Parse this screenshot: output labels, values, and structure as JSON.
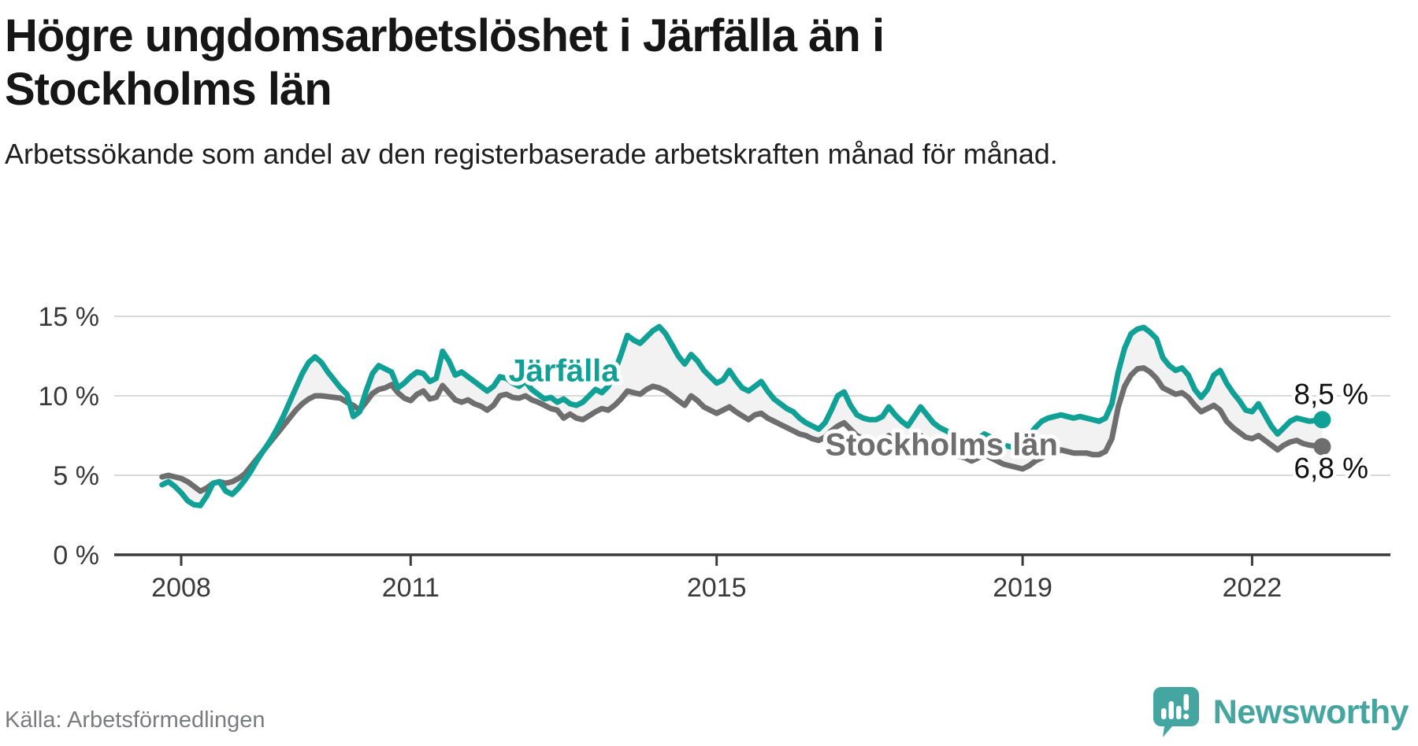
{
  "header": {
    "title": "Högre ungdomsarbetslöshet i Järfälla än i Stockholms län",
    "subtitle": "Arbetssökande som andel av den registerbaserade arbetskraften månad för månad."
  },
  "chart_data": {
    "type": "line",
    "grid": "horizontal-only",
    "x_axis": {
      "ticks": [
        2008,
        2011,
        2015,
        2019,
        2022
      ],
      "labels": [
        "2008",
        "2011",
        "2015",
        "2019",
        "2022"
      ]
    },
    "y_axis": {
      "ticks": [
        0,
        5,
        10,
        15
      ],
      "labels": [
        "0 %",
        "5 %",
        "10 %",
        "15 %"
      ],
      "range": [
        0,
        15.5
      ]
    },
    "start": {
      "year": 2007,
      "month": 10
    },
    "frequency": "monthly",
    "band_fill": "#f2f2f2",
    "series": [
      {
        "name": "Järfälla",
        "color": "#10a096",
        "end_label": "8,5 %",
        "end_label_dy": -20,
        "label_pos": {
          "x": 2013.0,
          "y": 11.6
        },
        "values": [
          4.4,
          4.6,
          4.3,
          3.9,
          3.4,
          3.15,
          3.1,
          3.7,
          4.5,
          4.6,
          4.0,
          3.8,
          4.2,
          4.7,
          5.3,
          6.0,
          6.6,
          7.2,
          7.9,
          8.7,
          9.6,
          10.5,
          11.4,
          12.1,
          12.45,
          12.1,
          11.5,
          11.0,
          10.5,
          10.1,
          8.7,
          9.0,
          10.3,
          11.4,
          11.9,
          11.7,
          11.5,
          10.5,
          10.8,
          11.2,
          11.5,
          11.4,
          10.9,
          11.1,
          12.8,
          12.2,
          11.3,
          11.5,
          11.2,
          10.9,
          10.6,
          10.3,
          10.6,
          11.2,
          11.1,
          10.8,
          10.6,
          10.9,
          10.4,
          10.1,
          9.8,
          9.9,
          9.6,
          9.8,
          9.5,
          9.4,
          9.6,
          10.0,
          10.4,
          10.2,
          10.6,
          11.5,
          12.6,
          13.8,
          13.5,
          13.3,
          13.7,
          14.1,
          14.35,
          13.9,
          13.2,
          12.5,
          12.0,
          12.6,
          12.2,
          11.6,
          11.2,
          10.8,
          11.0,
          11.6,
          11.0,
          10.5,
          10.3,
          10.6,
          10.9,
          10.3,
          9.8,
          9.5,
          9.2,
          9.0,
          8.6,
          8.3,
          8.1,
          7.9,
          8.3,
          9.1,
          10.0,
          10.25,
          9.4,
          8.8,
          8.6,
          8.5,
          8.5,
          8.7,
          9.3,
          8.8,
          8.4,
          8.1,
          8.7,
          9.3,
          8.8,
          8.3,
          8.0,
          7.8,
          7.6,
          7.4,
          7.2,
          7.0,
          7.3,
          7.6,
          7.4,
          7.1,
          6.9,
          6.8,
          6.7,
          7.0,
          7.5,
          8.0,
          8.4,
          8.6,
          8.7,
          8.8,
          8.7,
          8.6,
          8.7,
          8.6,
          8.5,
          8.4,
          8.6,
          9.5,
          11.5,
          13.0,
          13.9,
          14.2,
          14.3,
          14.0,
          13.6,
          12.4,
          11.9,
          11.6,
          11.75,
          11.3,
          10.4,
          9.9,
          10.4,
          11.3,
          11.6,
          10.8,
          10.2,
          9.7,
          9.1,
          9.0,
          9.5,
          8.8,
          8.1,
          7.6,
          8.0,
          8.4,
          8.6,
          8.5,
          8.4,
          8.45,
          8.5
        ]
      },
      {
        "name": "Stockholms län",
        "color": "#6e6e6e",
        "end_label": "6,8 %",
        "end_label_dy": 40,
        "label_pos": {
          "x": 2017.94,
          "y": 6.95
        },
        "values": [
          4.9,
          5.0,
          4.9,
          4.8,
          4.6,
          4.3,
          4.0,
          4.2,
          4.5,
          4.6,
          4.5,
          4.6,
          4.8,
          5.1,
          5.6,
          6.1,
          6.6,
          7.1,
          7.6,
          8.1,
          8.6,
          9.1,
          9.5,
          9.8,
          10.0,
          10.0,
          9.95,
          9.9,
          9.85,
          9.6,
          9.4,
          9.1,
          9.6,
          10.15,
          10.4,
          10.5,
          10.7,
          10.2,
          9.85,
          9.7,
          10.1,
          10.3,
          9.8,
          9.9,
          10.65,
          10.2,
          9.75,
          9.6,
          9.75,
          9.5,
          9.35,
          9.1,
          9.4,
          10.0,
          10.1,
          9.9,
          9.85,
          10.0,
          9.75,
          9.6,
          9.4,
          9.2,
          9.1,
          8.6,
          8.85,
          8.6,
          8.5,
          8.75,
          9.0,
          9.2,
          9.1,
          9.4,
          9.8,
          10.3,
          10.2,
          10.1,
          10.4,
          10.6,
          10.5,
          10.3,
          10.0,
          9.7,
          9.4,
          10.0,
          9.7,
          9.3,
          9.1,
          8.9,
          9.1,
          9.3,
          9.0,
          8.75,
          8.5,
          8.8,
          8.9,
          8.6,
          8.4,
          8.2,
          8.0,
          7.8,
          7.6,
          7.5,
          7.3,
          7.2,
          7.4,
          7.8,
          8.1,
          8.3,
          7.9,
          7.5,
          7.3,
          7.2,
          7.1,
          7.2,
          7.5,
          7.2,
          7.0,
          6.9,
          7.2,
          7.5,
          7.2,
          6.9,
          6.7,
          6.5,
          6.4,
          6.2,
          6.1,
          5.9,
          6.1,
          6.3,
          6.1,
          5.9,
          5.7,
          5.6,
          5.5,
          5.4,
          5.6,
          5.9,
          6.1,
          6.3,
          6.4,
          6.6,
          6.5,
          6.4,
          6.4,
          6.4,
          6.3,
          6.3,
          6.5,
          7.3,
          9.3,
          10.6,
          11.3,
          11.7,
          11.75,
          11.5,
          11.1,
          10.5,
          10.3,
          10.1,
          10.2,
          9.9,
          9.4,
          9.0,
          9.2,
          9.4,
          9.1,
          8.4,
          8.0,
          7.7,
          7.4,
          7.3,
          7.5,
          7.2,
          6.9,
          6.6,
          6.9,
          7.1,
          7.2,
          7.0,
          6.9,
          6.85,
          6.8
        ]
      }
    ]
  },
  "footer": {
    "source": "Källa: Arbetsförmedlingen",
    "brand": "Newsworthy"
  }
}
